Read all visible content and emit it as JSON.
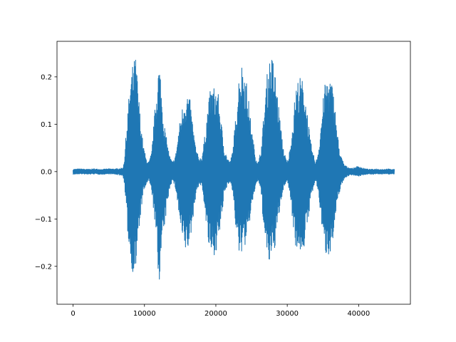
{
  "chart_data": {
    "type": "line",
    "title": "",
    "xlabel": "",
    "ylabel": "",
    "xlim": [
      -2250,
      47250
    ],
    "ylim": [
      -0.28,
      0.275
    ],
    "grid": false,
    "legend": null,
    "line_color": "#1f77b4",
    "x_ticks": [
      {
        "value": 0,
        "label": "0"
      },
      {
        "value": 10000,
        "label": "10000"
      },
      {
        "value": 20000,
        "label": "20000"
      },
      {
        "value": 30000,
        "label": "30000"
      },
      {
        "value": 40000,
        "label": "40000"
      }
    ],
    "y_ticks": [
      {
        "value": -0.2,
        "label": "−0.2"
      },
      {
        "value": -0.1,
        "label": "−0.1"
      },
      {
        "value": 0.0,
        "label": "0.0"
      },
      {
        "value": 0.1,
        "label": "0.1"
      },
      {
        "value": 0.2,
        "label": "0.2"
      }
    ],
    "series": [
      {
        "envelope": {
          "x": [
            0,
            1000,
            2000,
            3000,
            4000,
            5000,
            6000,
            7000,
            7200,
            7600,
            8000,
            8400,
            8800,
            9000,
            9400,
            9800,
            10200,
            10600,
            11000,
            11400,
            11800,
            12000,
            12200,
            12400,
            12800,
            13200,
            13600,
            14000,
            14400,
            14800,
            15200,
            15600,
            16000,
            16400,
            16800,
            17200,
            17600,
            18000,
            18400,
            18800,
            19200,
            19600,
            20000,
            20400,
            20800,
            21200,
            21600,
            22000,
            22400,
            22800,
            23200,
            23600,
            24000,
            24400,
            24800,
            25200,
            25600,
            26000,
            26400,
            26800,
            27200,
            27600,
            28000,
            28400,
            28800,
            29200,
            29600,
            30000,
            30400,
            30800,
            31200,
            31600,
            32000,
            32400,
            32800,
            33200,
            33600,
            34000,
            34400,
            34800,
            35200,
            35600,
            36000,
            36400,
            36800,
            37200,
            37600,
            38000,
            38400,
            38800,
            39200,
            39600,
            40000,
            40500,
            41000,
            41500,
            42000,
            42500,
            43000,
            43500,
            44000,
            44500,
            45000
          ],
          "upper": [
            0.005,
            0.006,
            0.005,
            0.006,
            0.005,
            0.006,
            0.006,
            0.008,
            0.03,
            0.12,
            0.19,
            0.23,
            0.245,
            0.2,
            0.12,
            0.06,
            0.03,
            0.02,
            0.04,
            0.12,
            0.2,
            0.23,
            0.22,
            0.17,
            0.1,
            0.06,
            0.03,
            0.02,
            0.04,
            0.09,
            0.13,
            0.16,
            0.17,
            0.15,
            0.1,
            0.05,
            0.03,
            0.03,
            0.07,
            0.13,
            0.17,
            0.18,
            0.18,
            0.16,
            0.1,
            0.05,
            0.03,
            0.02,
            0.05,
            0.12,
            0.2,
            0.23,
            0.22,
            0.18,
            0.12,
            0.07,
            0.03,
            0.02,
            0.06,
            0.14,
            0.21,
            0.245,
            0.24,
            0.2,
            0.14,
            0.08,
            0.04,
            0.02,
            0.05,
            0.11,
            0.18,
            0.2,
            0.2,
            0.18,
            0.13,
            0.07,
            0.04,
            0.02,
            0.05,
            0.12,
            0.18,
            0.2,
            0.2,
            0.18,
            0.12,
            0.06,
            0.03,
            0.015,
            0.01,
            0.008,
            0.007,
            0.01,
            0.012,
            0.008,
            0.006,
            0.005,
            0.005,
            0.006,
            0.005,
            0.005,
            0.006,
            0.005,
            0.005
          ],
          "lower": [
            -0.006,
            -0.005,
            -0.006,
            -0.005,
            -0.006,
            -0.005,
            -0.006,
            -0.009,
            -0.03,
            -0.12,
            -0.19,
            -0.215,
            -0.21,
            -0.17,
            -0.1,
            -0.05,
            -0.03,
            -0.02,
            -0.04,
            -0.1,
            -0.18,
            -0.255,
            -0.2,
            -0.17,
            -0.12,
            -0.07,
            -0.03,
            -0.02,
            -0.04,
            -0.09,
            -0.14,
            -0.17,
            -0.17,
            -0.15,
            -0.1,
            -0.05,
            -0.03,
            -0.03,
            -0.07,
            -0.14,
            -0.18,
            -0.18,
            -0.17,
            -0.15,
            -0.1,
            -0.05,
            -0.03,
            -0.02,
            -0.05,
            -0.12,
            -0.18,
            -0.17,
            -0.16,
            -0.15,
            -0.1,
            -0.06,
            -0.03,
            -0.02,
            -0.06,
            -0.14,
            -0.19,
            -0.2,
            -0.18,
            -0.15,
            -0.1,
            -0.06,
            -0.03,
            -0.02,
            -0.05,
            -0.11,
            -0.16,
            -0.17,
            -0.17,
            -0.16,
            -0.12,
            -0.07,
            -0.04,
            -0.02,
            -0.05,
            -0.11,
            -0.17,
            -0.18,
            -0.17,
            -0.15,
            -0.1,
            -0.05,
            -0.03,
            -0.015,
            -0.01,
            -0.008,
            -0.007,
            -0.009,
            -0.01,
            -0.008,
            -0.006,
            -0.005,
            -0.006,
            -0.005,
            -0.006,
            -0.005,
            -0.005,
            -0.006,
            -0.005
          ]
        }
      }
    ]
  }
}
